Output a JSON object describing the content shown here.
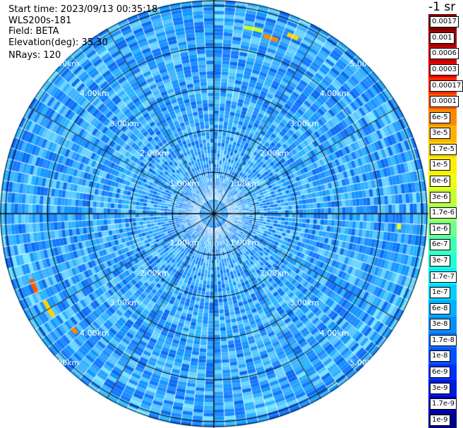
{
  "header": {
    "start_time": "Start time: 2023/09/13 00:35:18",
    "instrument": "WLS200s-181",
    "field": "Field: BETA",
    "elevation": "Elevation(deg): 35.30",
    "nrays": "NRays: 120"
  },
  "ppi": {
    "ring_labels": [
      "1.00km",
      "2.00km",
      "3.00km",
      "4.00km",
      "5.00km"
    ],
    "colors": {
      "background_blue": "#2aa0ff",
      "grid": "#000000",
      "ray_gap": "#ffffff"
    }
  },
  "colorbar": {
    "title": "-1 sr",
    "labels": [
      "0.0017",
      "0.001",
      "0.0006",
      "0.0003",
      "0.00017",
      "0.0001",
      "6e-5",
      "3e-5",
      "1.7e-5",
      "1e-5",
      "6e-6",
      "3e-6",
      "1.7e-6",
      "1e-6",
      "6e-7",
      "3e-7",
      "1.7e-7",
      "1e-7",
      "6e-8",
      "3e-8",
      "1.7e-8",
      "1e-8",
      "6e-9",
      "3e-9",
      "1.7e-9",
      "1e-9"
    ],
    "colors": [
      "#7a0000",
      "#a00000",
      "#c80000",
      "#e60000",
      "#ff2a00",
      "#ff5a00",
      "#ff8a00",
      "#ffb000",
      "#ffd400",
      "#ffee00",
      "#f0ff10",
      "#c8ff30",
      "#9cff5a",
      "#70ff8a",
      "#40ffb4",
      "#20ffd8",
      "#00f0ff",
      "#00d0ff",
      "#00b0ff",
      "#0090ff",
      "#0070ff",
      "#0050ff",
      "#0030ff",
      "#0018e0",
      "#0000c0",
      "#00008a"
    ]
  }
}
